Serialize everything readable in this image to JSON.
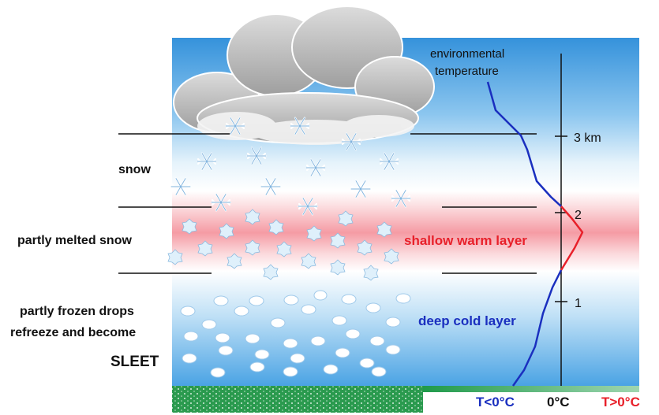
{
  "layers": {
    "snow": "snow",
    "melted": "partly melted snow",
    "sleet_line1": "partly frozen drops",
    "sleet_line2": "refreeze and become",
    "sleet_line3": "SLEET"
  },
  "annotations": {
    "env_temp_line1": "environmental",
    "env_temp_line2": "temperature",
    "warm_layer": "shallow warm layer",
    "cold_layer": "deep cold layer"
  },
  "altitude_axis": {
    "tick_3": "3 km",
    "tick_2": "2",
    "tick_1": "1"
  },
  "temperature_axis": {
    "below_zero": "T<0°C",
    "zero": "0°C",
    "above_zero": "T>0°C"
  },
  "colors": {
    "sky_top": "#3b9be0",
    "warm_band": "#f7a0a8",
    "cold_curve": "#1a2fbf",
    "warm_curve": "#e8202a",
    "ground": "#1f9a4a",
    "warm_text": "#e8202a",
    "cold_text": "#1a2fbf"
  }
}
